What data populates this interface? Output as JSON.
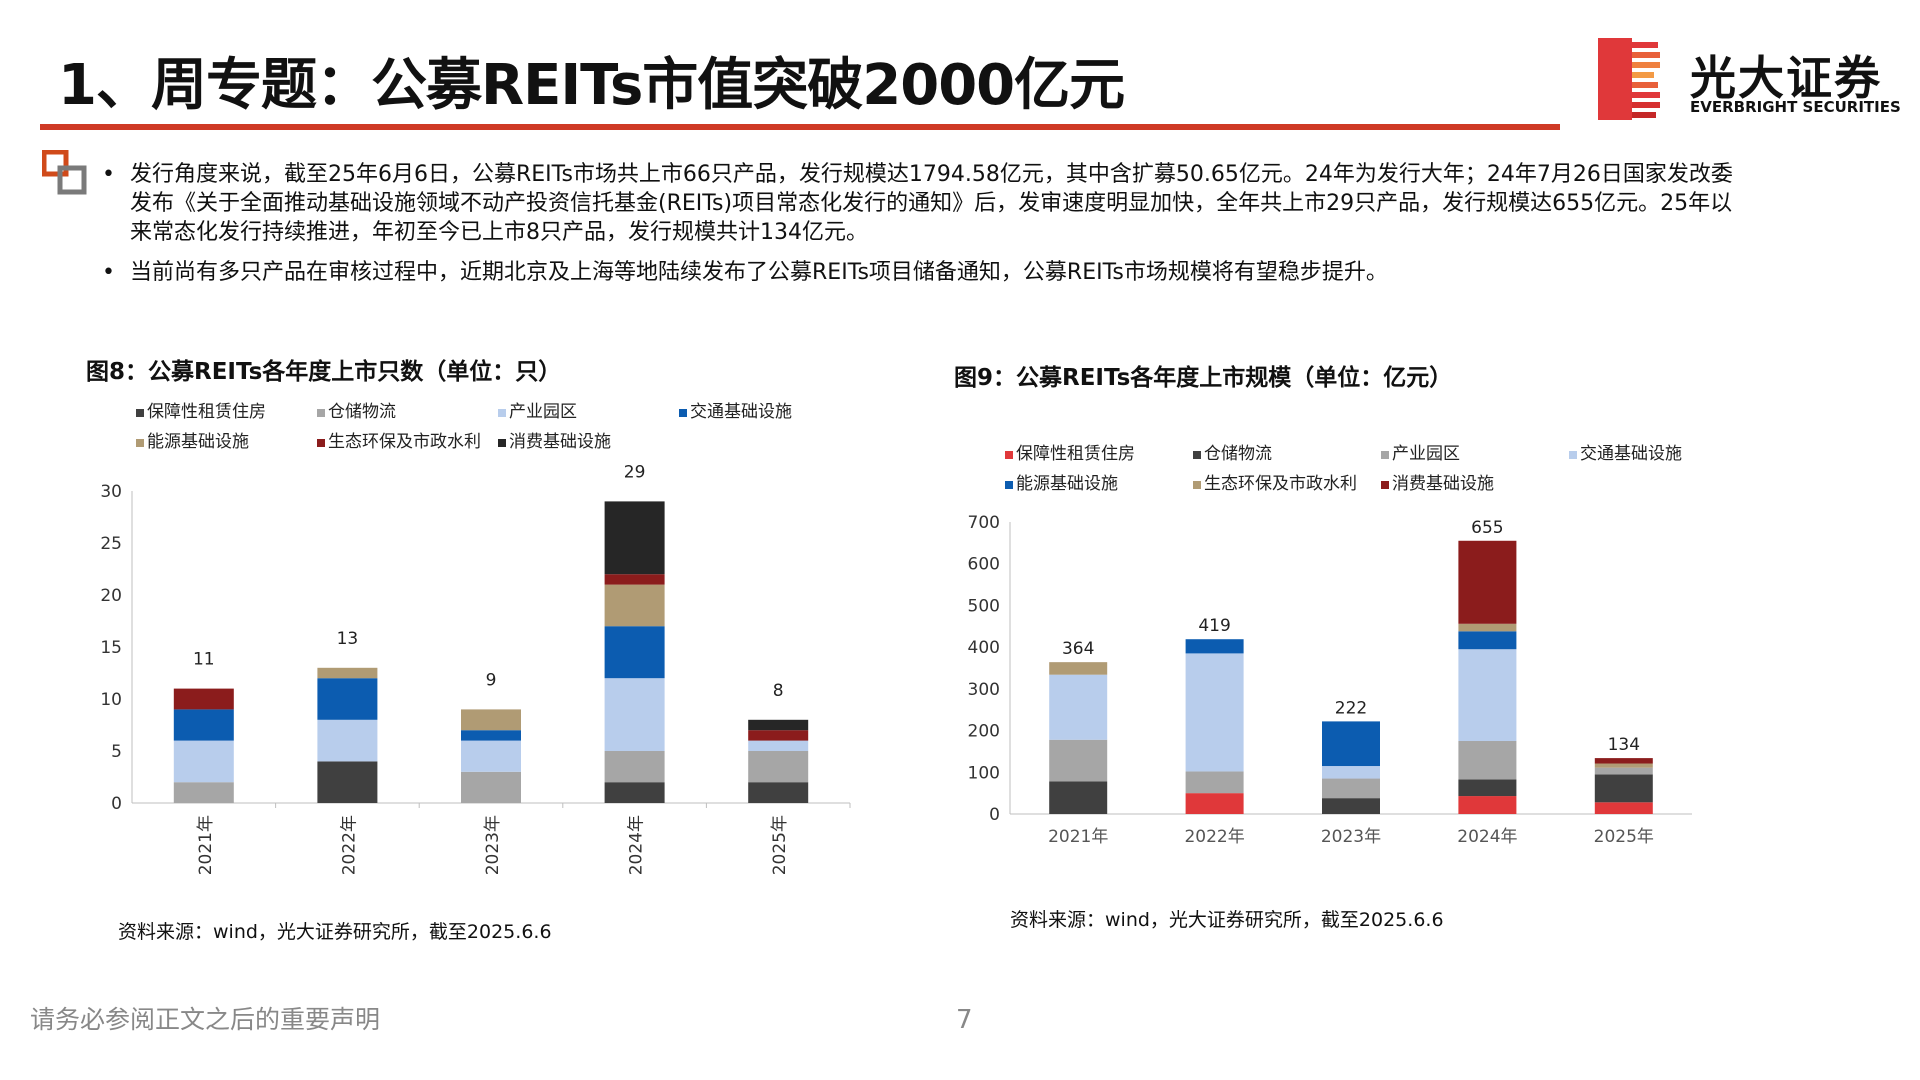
{
  "header": {
    "title": "1、周专题：公募REITs市值突破2000亿元",
    "logo_cn": "光大证券",
    "logo_en": "EVERBRIGHT SECURITIES"
  },
  "bullets": [
    "发行角度来说，截至25年6月6日，公募REITs市场共上市66只产品，发行规模达1794.58亿元，其中含扩募50.65亿元。24年为发行大年；24年7月26日国家发改委发布《关于全面推动基础设施领域不动产投资信托基金(REITs)项目常态化发行的通知》后，发审速度明显加快，全年共上市29只产品，发行规模达655亿元。25年以来常态化发行持续推进，年初至今已上市8只产品，发行规模共计134亿元。",
    "当前尚有多只产品在审核过程中，近期北京及上海等地陆续发布了公募REITs项目储备通知，公募REITs市场规模将有望稳步提升。"
  ],
  "bullet_symbol": "•",
  "footer": {
    "disclaimer": "请务必参阅正文之后的重要声明",
    "page": "7"
  },
  "colors": {
    "accent": "#cf3a26",
    "保障性租赁住房": "#e0383a",
    "仓储物流": "#a6a6a6",
    "产业园区": "#b8cdec",
    "交通基础设施": "#0c5cb0",
    "能源基础设施": "#b09b74",
    "生态环保及市政水利": "#8b1c1c",
    "消费基础设施": "#262626"
  },
  "chart_data": [
    {
      "type": "bar",
      "stacked": true,
      "title": "图8：公募REITs各年度上市只数（单位：只）",
      "categories": [
        "2021年",
        "2022年",
        "2023年",
        "2024年",
        "2025年"
      ],
      "totals": [
        11,
        13,
        9,
        29,
        8
      ],
      "ylim": [
        0,
        30
      ],
      "yticks": [
        0,
        5,
        10,
        15,
        20,
        25,
        30
      ],
      "legend_position": "top",
      "source": "资料来源：wind，光大证券研究所，截至2025.6.6",
      "series": [
        {
          "name": "保障性租赁住房",
          "color": "#404040",
          "values": [
            0,
            4,
            0,
            2,
            2
          ]
        },
        {
          "name": "仓储物流",
          "color": "#a6a6a6",
          "values": [
            2,
            0,
            3,
            3,
            3
          ]
        },
        {
          "name": "产业园区",
          "color": "#b8cdec",
          "values": [
            4,
            4,
            3,
            7,
            1
          ]
        },
        {
          "name": "交通基础设施",
          "color": "#0c5cb0",
          "values": [
            3,
            4,
            1,
            5,
            0
          ]
        },
        {
          "name": "能源基础设施",
          "color": "#b09b74",
          "values": [
            0,
            1,
            2,
            4,
            0
          ]
        },
        {
          "name": "生态环保及市政水利",
          "color": "#8b1c1c",
          "values": [
            2,
            0,
            0,
            1,
            1
          ]
        },
        {
          "name": "消费基础设施",
          "color": "#262626",
          "values": [
            0,
            0,
            0,
            7,
            1
          ]
        }
      ]
    },
    {
      "type": "bar",
      "stacked": true,
      "title": "图9：公募REITs各年度上市规模（单位：亿元）",
      "categories": [
        "2021年",
        "2022年",
        "2023年",
        "2024年",
        "2025年"
      ],
      "totals": [
        364,
        419,
        222,
        655,
        134
      ],
      "ylim": [
        0,
        700
      ],
      "yticks": [
        0,
        100,
        200,
        300,
        400,
        500,
        600,
        700
      ],
      "legend_position": "top",
      "source": "资料来源：wind，光大证券研究所，截至2025.6.6",
      "series": [
        {
          "name": "保障性租赁住房",
          "color": "#e0383a",
          "values": [
            0,
            50,
            0,
            43,
            28
          ]
        },
        {
          "name": "仓储物流",
          "color": "#404040",
          "values": [
            78,
            0,
            38,
            40,
            67
          ]
        },
        {
          "name": "产业园区",
          "color": "#a6a6a6",
          "values": [
            100,
            52,
            47,
            92,
            16
          ]
        },
        {
          "name": "交通基础设施",
          "color": "#b8cdec",
          "values": [
            156,
            283,
            30,
            220,
            0
          ]
        },
        {
          "name": "能源基础设施",
          "color": "#0c5cb0",
          "values": [
            0,
            34,
            107,
            43,
            0
          ]
        },
        {
          "name": "生态环保及市政水利",
          "color": "#b09b74",
          "values": [
            30,
            0,
            0,
            18,
            10
          ]
        },
        {
          "name": "消费基础设施",
          "color": "#8b1c1c",
          "values": [
            0,
            0,
            0,
            199,
            13
          ]
        }
      ]
    }
  ]
}
